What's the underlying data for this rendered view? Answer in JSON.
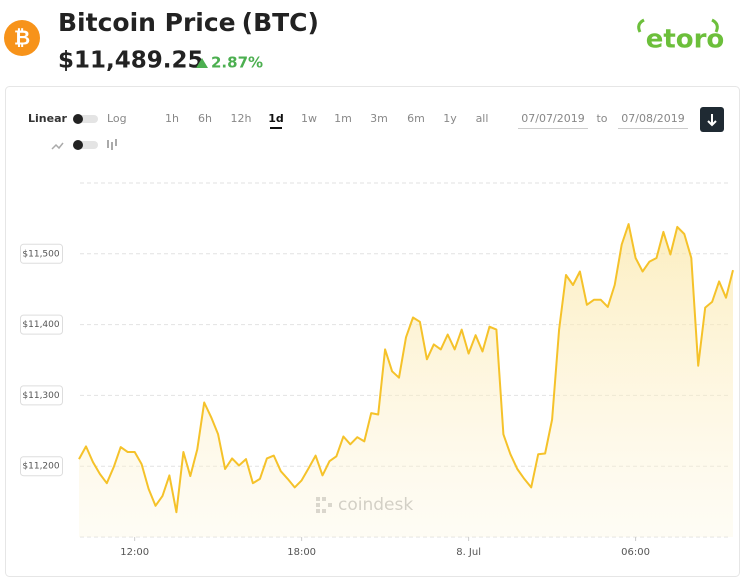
{
  "header": {
    "icon": "₿",
    "title": "Bitcoin Price",
    "symbol": "(BTC)",
    "price": "$11,489.25",
    "change": "2.87%",
    "brand": "etoro"
  },
  "controls": {
    "scale_options": [
      "Linear",
      "Log"
    ],
    "ranges": [
      "1h",
      "6h",
      "12h",
      "1d",
      "1w",
      "1m",
      "3m",
      "6m",
      "1y",
      "all"
    ],
    "active_range": 3,
    "from": "07/07/2019",
    "to_label": "to",
    "to": "07/08/2019"
  },
  "chart_data": {
    "type": "line",
    "color": "#f5c22a",
    "watermark": "coindesk",
    "values": [
      11210,
      11228,
      11206,
      11189,
      11176,
      11199,
      11227,
      11220,
      11220,
      11203,
      11168,
      11144,
      11158,
      11187,
      11135,
      11220,
      11186,
      11224,
      11290,
      11269,
      11245,
      11196,
      11211,
      11201,
      11210,
      11176,
      11182,
      11211,
      11215,
      11193,
      11182,
      11170,
      11180,
      11197,
      11215,
      11187,
      11207,
      11214,
      11242,
      11231,
      11241,
      11235,
      11275,
      11273,
      11365,
      11334,
      11325,
      11382,
      11410,
      11404,
      11351,
      11372,
      11365,
      11386,
      11365,
      11393,
      11359,
      11385,
      11362,
      11397,
      11393,
      11245,
      11217,
      11196,
      11182,
      11170,
      11217,
      11218,
      11266,
      11393,
      11470,
      11456,
      11475,
      11428,
      11435,
      11435,
      11425,
      11456,
      11513,
      11542,
      11494,
      11475,
      11489,
      11494,
      11531,
      11499,
      11538,
      11528,
      11494,
      11342,
      11424,
      11432,
      11461,
      11438,
      11477
    ],
    "xlim": [
      0,
      94
    ],
    "xticks": [
      {
        "value": 8,
        "label": "12:00"
      },
      {
        "value": 32,
        "label": "18:00"
      },
      {
        "value": 56,
        "label": "8. Jul"
      },
      {
        "value": 80,
        "label": "06:00"
      }
    ],
    "ylim": [
      11100,
      11600
    ],
    "yticks": [
      {
        "value": 11200,
        "label": "$11,200"
      },
      {
        "value": 11300,
        "label": "$11,300"
      },
      {
        "value": 11400,
        "label": "$11,400"
      },
      {
        "value": 11500,
        "label": "$11,500"
      }
    ],
    "grid": true
  }
}
